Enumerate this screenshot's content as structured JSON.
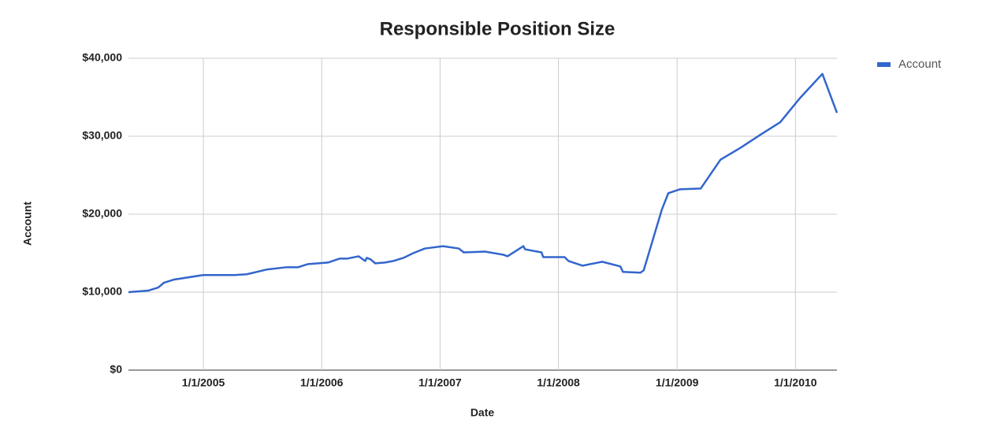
{
  "chart_data": {
    "type": "line",
    "title": "Responsible Position Size",
    "x_label": "Date",
    "y_label": "Account",
    "x": [
      "5/15/2004",
      "7/15/2004",
      "8/15/2004",
      "9/1/2004",
      "10/1/2004",
      "1/1/2005",
      "4/8/2005",
      "5/15/2005",
      "7/15/2005",
      "9/15/2005",
      "10/20/2005",
      "11/20/2005",
      "1/20/2006",
      "2/25/2006",
      "3/20/2006",
      "4/25/2006",
      "5/15/2006",
      "5/20/2006",
      "6/1/2006",
      "6/15/2006",
      "7/15/2006",
      "8/10/2006",
      "9/10/2006",
      "10/10/2006",
      "11/15/2006",
      "1/10/2007",
      "2/28/2007",
      "3/15/2007",
      "5/20/2007",
      "7/15/2007",
      "7/28/2007",
      "9/15/2007",
      "9/20/2007",
      "11/10/2007",
      "11/15/2007",
      "1/20/2008",
      "2/1/2008",
      "3/15/2008",
      "5/15/2008",
      "7/10/2008",
      "7/18/2008",
      "9/10/2008",
      "9/20/2008",
      "11/15/2008",
      "12/5/2008",
      "1/10/2009",
      "3/15/2009",
      "5/15/2009",
      "7/15/2009",
      "9/15/2009",
      "11/15/2009",
      "1/15/2010",
      "3/25/2010",
      "5/9/2010"
    ],
    "series": [
      {
        "name": "Account",
        "color": "#3366cc",
        "values": [
          10000,
          10200,
          10600,
          11200,
          11600,
          12200,
          12200,
          12300,
          12900,
          13200,
          13200,
          13600,
          13800,
          14300,
          14300,
          14600,
          14000,
          14400,
          14200,
          13700,
          13800,
          14000,
          14400,
          15000,
          15600,
          15900,
          15600,
          15100,
          15200,
          14800,
          14600,
          15900,
          15500,
          15100,
          14500,
          14500,
          14000,
          13400,
          13900,
          13300,
          12600,
          12500,
          12800,
          20600,
          22700,
          23200,
          23300,
          27000,
          28500,
          30200,
          31800,
          34900,
          38000,
          33000
        ]
      }
    ],
    "xlim": [
      "5/15/2004",
      "5/9/2010"
    ],
    "xticks": [
      "1/1/2005",
      "1/1/2006",
      "1/1/2007",
      "1/1/2008",
      "1/1/2009",
      "1/1/2010"
    ],
    "ylim": [
      0,
      40000
    ],
    "yticks": [
      {
        "value": 0,
        "label": "$0"
      },
      {
        "value": 10000,
        "label": "$10,000"
      },
      {
        "value": 20000,
        "label": "$20,000"
      },
      {
        "value": 30000,
        "label": "$30,000"
      },
      {
        "value": 40000,
        "label": "$40,000"
      }
    ],
    "grid": true,
    "legend": "right"
  }
}
